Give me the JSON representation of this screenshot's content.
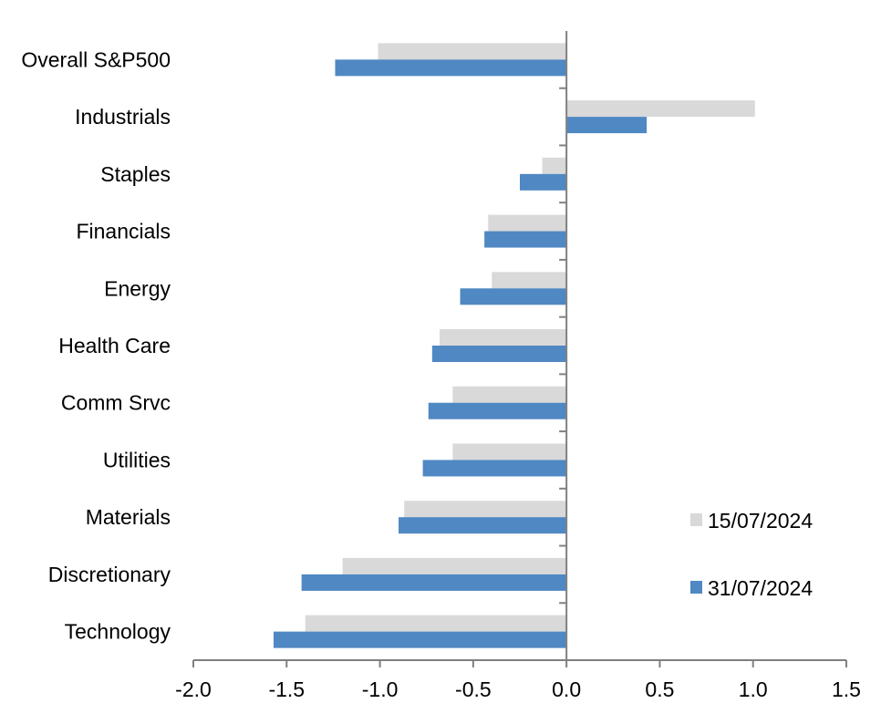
{
  "chart_data": {
    "type": "bar",
    "orientation": "horizontal",
    "categories": [
      "Overall S&P500",
      "Industrials",
      "Staples",
      "Financials",
      "Energy",
      "Health Care",
      "Comm Srvc",
      "Utilities",
      "Materials",
      "Discretionary",
      "Technology"
    ],
    "series": [
      {
        "name": "15/07/2024",
        "color": "#d9d9d9",
        "values": [
          -1.01,
          1.01,
          -0.13,
          -0.42,
          -0.4,
          -0.68,
          -0.61,
          -0.61,
          -0.87,
          -1.2,
          -1.4
        ]
      },
      {
        "name": "31/07/2024",
        "color": "#4f88c2",
        "values": [
          -1.24,
          0.43,
          -0.25,
          -0.44,
          -0.57,
          -0.72,
          -0.74,
          -0.77,
          -0.9,
          -1.42,
          -1.57
        ]
      }
    ],
    "xlim": [
      -2.0,
      1.5
    ],
    "xticks": [
      "-2.0",
      "-1.5",
      "-1.0",
      "-0.5",
      "0.0",
      "0.5",
      "1.0",
      "1.5"
    ],
    "grid": false,
    "legend": "bottom-right"
  }
}
